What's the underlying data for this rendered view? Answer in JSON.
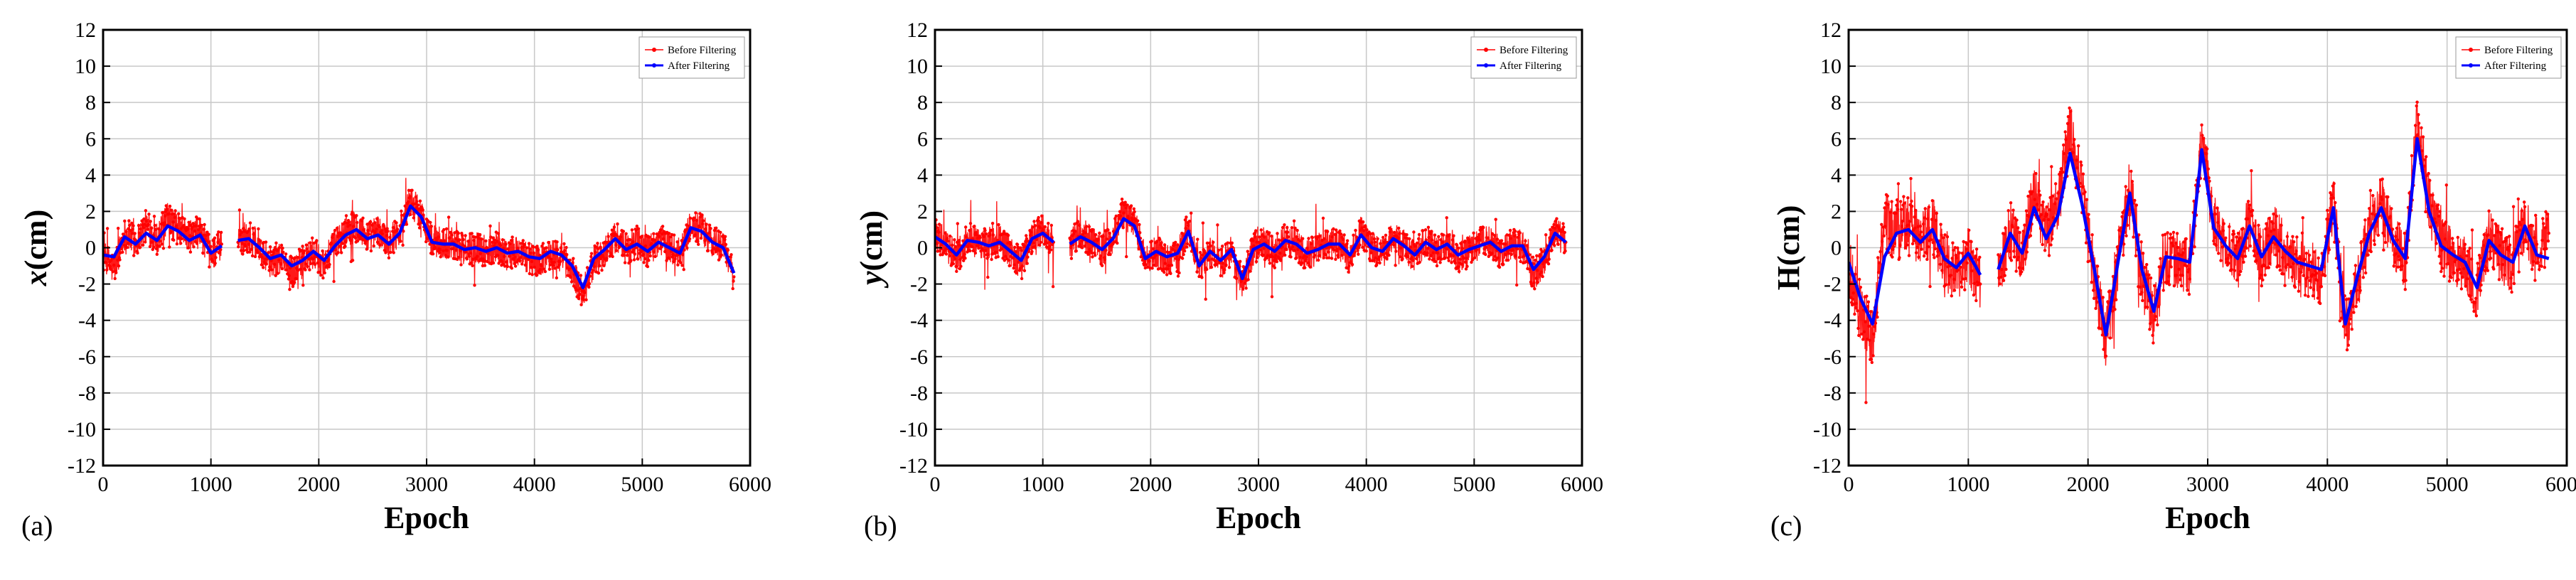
{
  "chart_data": [
    {
      "type": "line",
      "panel_label": "(a)",
      "xlabel": "Epoch",
      "ylabel": "x(cm)",
      "ylabel_parts": [
        "x",
        "(cm)"
      ],
      "xlim": [
        0,
        6000
      ],
      "ylim": [
        -12,
        12
      ],
      "x_ticks": [
        0,
        1000,
        2000,
        3000,
        4000,
        5000,
        6000
      ],
      "y_ticks": [
        -12,
        -10,
        -8,
        -6,
        -4,
        -2,
        0,
        2,
        4,
        6,
        8,
        10,
        12
      ],
      "grid": true,
      "legend_position": "top-right",
      "gaps": [
        [
          1100,
          1250
        ]
      ],
      "series": [
        {
          "name": "Before Filtering",
          "color": "#ff0000",
          "style": "dots",
          "x": [
            0,
            100,
            200,
            300,
            400,
            500,
            600,
            700,
            800,
            900,
            1000,
            1100,
            1250,
            1350,
            1450,
            1550,
            1650,
            1750,
            1850,
            1950,
            2050,
            2150,
            2250,
            2350,
            2450,
            2550,
            2650,
            2750,
            2850,
            2950,
            3050,
            3150,
            3250,
            3350,
            3450,
            3550,
            3650,
            3750,
            3850,
            3950,
            4050,
            4150,
            4250,
            4350,
            4450,
            4550,
            4650,
            4750,
            4850,
            4950,
            5050,
            5150,
            5250,
            5350,
            5450,
            5550,
            5650,
            5750,
            5850
          ],
          "y": [
            -0.5,
            -1.2,
            0.8,
            0.3,
            1.2,
            0.5,
            1.6,
            1.0,
            0.6,
            0.9,
            -0.4,
            0.2,
            0.3,
            0.6,
            0.1,
            -0.8,
            -0.5,
            -1.4,
            -0.8,
            -0.3,
            -0.9,
            0.2,
            0.9,
            1.2,
            0.6,
            0.9,
            0.3,
            1.0,
            2.6,
            1.8,
            0.4,
            0.2,
            0.3,
            -0.2,
            0.1,
            -0.2,
            0.1,
            -0.4,
            -0.2,
            -0.6,
            -0.8,
            -0.3,
            -0.5,
            -1.2,
            -2.6,
            -0.8,
            -0.2,
            0.6,
            -0.1,
            0.3,
            -0.2,
            0.4,
            0.1,
            -0.4,
            1.2,
            1.0,
            0.3,
            0.1,
            -1.6
          ]
        },
        {
          "name": "After Filtering",
          "color": "#0000ff",
          "style": "line",
          "x": [
            0,
            100,
            200,
            300,
            400,
            500,
            600,
            700,
            800,
            900,
            1000,
            1100,
            1250,
            1350,
            1450,
            1550,
            1650,
            1750,
            1850,
            1950,
            2050,
            2150,
            2250,
            2350,
            2450,
            2550,
            2650,
            2750,
            2850,
            2950,
            3050,
            3150,
            3250,
            3350,
            3450,
            3550,
            3650,
            3750,
            3850,
            3950,
            4050,
            4150,
            4250,
            4350,
            4450,
            4550,
            4650,
            4750,
            4850,
            4950,
            5050,
            5150,
            5250,
            5350,
            5450,
            5550,
            5650,
            5750,
            5850
          ],
          "y": [
            -0.4,
            -0.5,
            0.6,
            0.2,
            0.8,
            0.4,
            1.2,
            0.9,
            0.4,
            0.7,
            -0.3,
            0.1,
            0.4,
            0.5,
            0.0,
            -0.6,
            -0.4,
            -1.0,
            -0.7,
            -0.2,
            -0.7,
            0.1,
            0.7,
            1.0,
            0.5,
            0.7,
            0.2,
            0.8,
            2.3,
            1.7,
            0.3,
            0.2,
            0.2,
            -0.1,
            0.0,
            -0.2,
            0.0,
            -0.3,
            -0.2,
            -0.5,
            -0.6,
            -0.2,
            -0.4,
            -1.0,
            -2.2,
            -0.6,
            -0.1,
            0.5,
            -0.1,
            0.2,
            -0.2,
            0.3,
            0.0,
            -0.3,
            1.1,
            0.9,
            0.3,
            0.0,
            -1.4
          ]
        }
      ]
    },
    {
      "type": "line",
      "panel_label": "(b)",
      "xlabel": "Epoch",
      "ylabel": "y(cm)",
      "ylabel_parts": [
        "y",
        "(cm)"
      ],
      "xlim": [
        0,
        6000
      ],
      "ylim": [
        -12,
        12
      ],
      "x_ticks": [
        0,
        1000,
        2000,
        3000,
        4000,
        5000,
        6000
      ],
      "y_ticks": [
        -12,
        -10,
        -8,
        -6,
        -4,
        -2,
        0,
        2,
        4,
        6,
        8,
        10,
        12
      ],
      "grid": true,
      "legend_position": "top-right",
      "gaps": [
        [
          1100,
          1250
        ]
      ],
      "series": [
        {
          "name": "Before Filtering",
          "color": "#ff0000",
          "style": "dots",
          "x": [
            0,
            100,
            200,
            300,
            400,
            500,
            600,
            700,
            800,
            900,
            1000,
            1100,
            1250,
            1350,
            1450,
            1550,
            1650,
            1750,
            1850,
            1950,
            2050,
            2150,
            2250,
            2350,
            2450,
            2550,
            2650,
            2750,
            2850,
            2950,
            3050,
            3150,
            3250,
            3350,
            3450,
            3550,
            3650,
            3750,
            3850,
            3950,
            4050,
            4150,
            4250,
            4350,
            4450,
            4550,
            4650,
            4750,
            4850,
            4950,
            5050,
            5150,
            5250,
            5350,
            5450,
            5550,
            5650,
            5750,
            5850
          ],
          "y": [
            0.8,
            0.2,
            -0.6,
            0.5,
            0.3,
            0.1,
            0.4,
            -0.3,
            -0.9,
            0.6,
            1.0,
            0.3,
            0.2,
            0.8,
            0.4,
            -0.2,
            0.6,
            1.8,
            1.4,
            -0.8,
            -0.2,
            -0.7,
            -0.4,
            1.1,
            -1.2,
            -0.3,
            -0.9,
            -0.2,
            -2.0,
            -0.1,
            0.3,
            -0.3,
            0.5,
            0.2,
            -0.4,
            -0.1,
            0.3,
            0.2,
            -0.6,
            0.9,
            0.0,
            -0.3,
            0.6,
            0.1,
            -0.5,
            0.4,
            -0.2,
            0.3,
            -0.6,
            -0.2,
            0.2,
            0.4,
            -0.3,
            0.2,
            0.1,
            -1.5,
            -0.7,
            0.9,
            0.3
          ]
        },
        {
          "name": "After Filtering",
          "color": "#0000ff",
          "style": "line",
          "x": [
            0,
            100,
            200,
            300,
            400,
            500,
            600,
            700,
            800,
            900,
            1000,
            1100,
            1250,
            1350,
            1450,
            1550,
            1650,
            1750,
            1850,
            1950,
            2050,
            2150,
            2250,
            2350,
            2450,
            2550,
            2650,
            2750,
            2850,
            2950,
            3050,
            3150,
            3250,
            3350,
            3450,
            3550,
            3650,
            3750,
            3850,
            3950,
            4050,
            4150,
            4250,
            4350,
            4450,
            4550,
            4650,
            4750,
            4850,
            4950,
            5050,
            5150,
            5250,
            5350,
            5450,
            5550,
            5650,
            5750,
            5850
          ],
          "y": [
            0.6,
            0.2,
            -0.4,
            0.4,
            0.3,
            0.1,
            0.3,
            -0.2,
            -0.7,
            0.5,
            0.8,
            0.3,
            0.2,
            0.6,
            0.3,
            -0.1,
            0.5,
            1.6,
            1.2,
            -0.6,
            -0.2,
            -0.5,
            -0.3,
            0.9,
            -1.0,
            -0.2,
            -0.7,
            -0.1,
            -1.7,
            -0.1,
            0.2,
            -0.2,
            0.4,
            0.2,
            -0.3,
            -0.1,
            0.2,
            0.2,
            -0.4,
            0.7,
            0.0,
            -0.2,
            0.5,
            0.1,
            -0.4,
            0.3,
            -0.1,
            0.2,
            -0.4,
            -0.1,
            0.1,
            0.3,
            -0.2,
            0.1,
            0.1,
            -1.2,
            -0.5,
            0.8,
            0.3
          ]
        }
      ]
    },
    {
      "type": "line",
      "panel_label": "(c)",
      "xlabel": "Epoch",
      "ylabel": "H(cm)",
      "ylabel_parts": [
        "H",
        "(cm)"
      ],
      "xlim": [
        0,
        6000
      ],
      "ylim": [
        -12,
        12
      ],
      "x_ticks": [
        0,
        1000,
        2000,
        3000,
        4000,
        5000,
        6000
      ],
      "y_ticks": [
        -12,
        -10,
        -8,
        -6,
        -4,
        -2,
        0,
        2,
        4,
        6,
        8,
        10,
        12
      ],
      "grid": true,
      "legend_position": "top-right",
      "gaps": [
        [
          1100,
          1250
        ]
      ],
      "series": [
        {
          "name": "Before Filtering",
          "color": "#ff0000",
          "style": "dots",
          "x": [
            0,
            100,
            200,
            300,
            400,
            500,
            600,
            700,
            800,
            900,
            1000,
            1100,
            1250,
            1350,
            1450,
            1550,
            1650,
            1750,
            1850,
            1950,
            2050,
            2150,
            2250,
            2350,
            2450,
            2550,
            2650,
            2750,
            2850,
            2950,
            3050,
            3150,
            3250,
            3350,
            3450,
            3550,
            3650,
            3750,
            3850,
            3950,
            4050,
            4150,
            4250,
            4350,
            4450,
            4550,
            4650,
            4750,
            4850,
            4950,
            5050,
            5150,
            5250,
            5350,
            5450,
            5550,
            5650,
            5750,
            5850
          ],
          "y": [
            -1.0,
            -3.5,
            -5.0,
            1.5,
            0.8,
            1.5,
            0.2,
            1.2,
            -0.8,
            -1.5,
            -0.4,
            -2.0,
            -1.5,
            1.0,
            -0.5,
            3.0,
            0.8,
            2.5,
            6.5,
            3.0,
            -1.5,
            -5.0,
            -1.0,
            3.5,
            -1.5,
            -3.8,
            -0.5,
            -0.8,
            -1.0,
            6.0,
            1.5,
            0.2,
            -0.8,
            1.5,
            -0.6,
            0.8,
            -0.2,
            -1.0,
            -1.2,
            -1.5,
            2.5,
            -4.5,
            -2.0,
            1.0,
            2.5,
            0.5,
            -0.8,
            7.0,
            2.5,
            0.2,
            -0.5,
            -1.0,
            -2.5,
            0.5,
            -0.5,
            -1.0,
            1.5,
            -0.5,
            0.8
          ]
        },
        {
          "name": "After Filtering",
          "color": "#0000ff",
          "style": "line",
          "x": [
            0,
            100,
            200,
            300,
            400,
            500,
            600,
            700,
            800,
            900,
            1000,
            1100,
            1250,
            1350,
            1450,
            1550,
            1650,
            1750,
            1850,
            1950,
            2050,
            2150,
            2250,
            2350,
            2450,
            2550,
            2650,
            2750,
            2850,
            2950,
            3050,
            3150,
            3250,
            3350,
            3450,
            3550,
            3650,
            3750,
            3850,
            3950,
            4050,
            4150,
            4250,
            4350,
            4450,
            4550,
            4650,
            4750,
            4850,
            4950,
            5050,
            5150,
            5250,
            5350,
            5450,
            5550,
            5650,
            5750,
            5850
          ],
          "y": [
            -0.8,
            -2.8,
            -4.2,
            -0.5,
            0.8,
            1.0,
            0.3,
            1.0,
            -0.6,
            -1.1,
            -0.3,
            -1.5,
            -1.2,
            0.8,
            -0.3,
            2.2,
            0.5,
            1.8,
            5.2,
            2.4,
            -1.1,
            -4.8,
            -0.8,
            3.0,
            -1.2,
            -3.5,
            -0.5,
            -0.6,
            -0.8,
            5.4,
            1.1,
            0.1,
            -0.6,
            1.2,
            -0.5,
            0.6,
            -0.2,
            -0.8,
            -1.0,
            -1.2,
            2.2,
            -4.2,
            -1.6,
            0.8,
            2.2,
            0.4,
            -0.6,
            6.0,
            2.0,
            0.1,
            -0.4,
            -0.8,
            -2.2,
            0.4,
            -0.4,
            -0.8,
            1.2,
            -0.4,
            -0.6
          ]
        }
      ]
    }
  ]
}
